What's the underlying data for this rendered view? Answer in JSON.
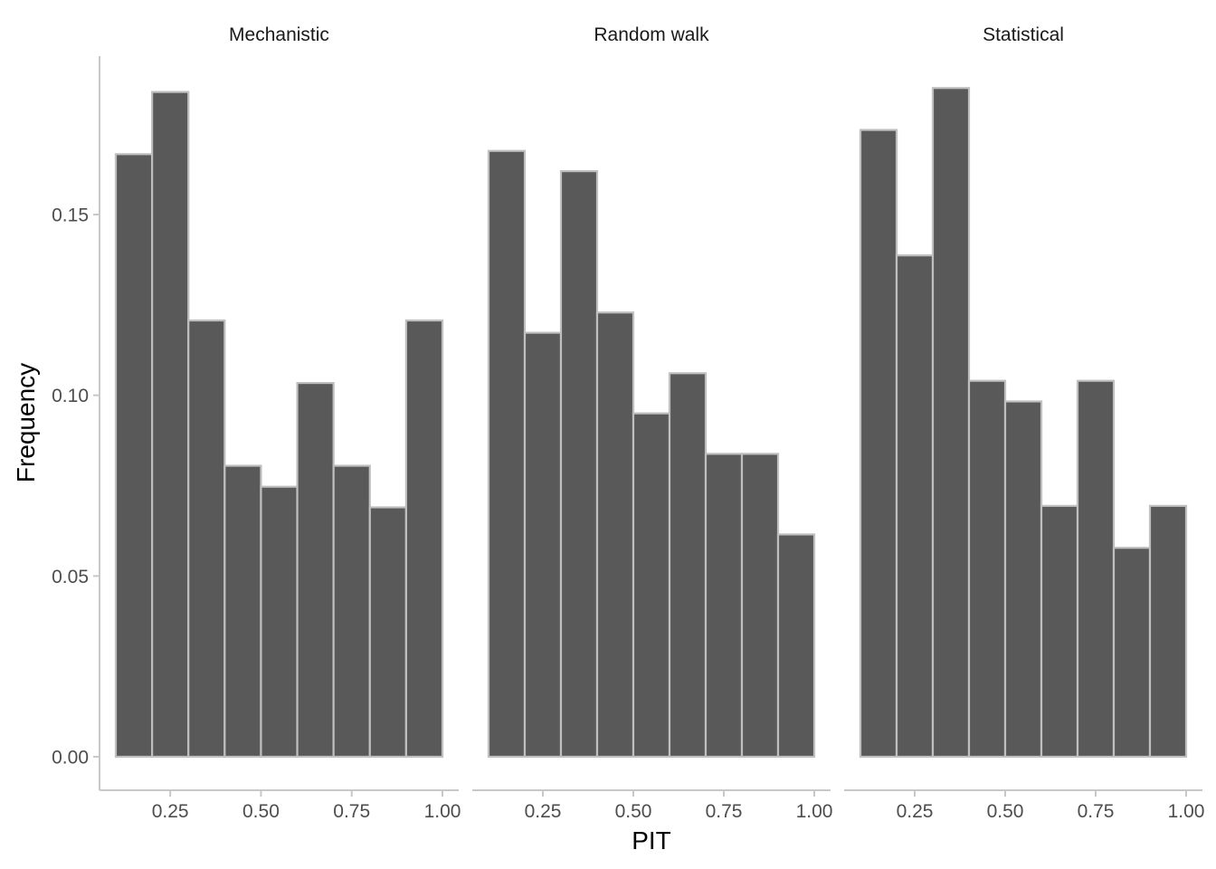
{
  "chart_data": {
    "type": "bar",
    "subtype": "faceted-histogram",
    "xlabel": "PIT",
    "ylabel": "Frequency",
    "xlim": [
      0.1,
      1.0
    ],
    "ylim": [
      0,
      0.185
    ],
    "x_ticks": [
      "0.25",
      "0.50",
      "0.75",
      "1.00"
    ],
    "y_ticks": [
      "0.00",
      "0.05",
      "0.10",
      "0.15"
    ],
    "bin_edges": [
      0.1,
      0.2,
      0.3,
      0.4,
      0.5,
      0.6,
      0.7,
      0.8,
      0.9,
      1.0
    ],
    "grid": false,
    "bar_fill": "#595959",
    "bar_stroke": "#bfbfbf",
    "facets": [
      {
        "label": "Mechanistic",
        "values": [
          0.1667,
          0.1839,
          0.1207,
          0.0805,
          0.0747,
          0.1034,
          0.0805,
          0.069,
          0.1207
        ]
      },
      {
        "label": "Random walk",
        "values": [
          0.1676,
          0.1173,
          0.162,
          0.1229,
          0.095,
          0.1061,
          0.0838,
          0.0838,
          0.0615
        ]
      },
      {
        "label": "Statistical",
        "values": [
          0.1734,
          0.1387,
          0.185,
          0.104,
          0.0983,
          0.0694,
          0.104,
          0.0578,
          0.0694
        ]
      }
    ]
  }
}
